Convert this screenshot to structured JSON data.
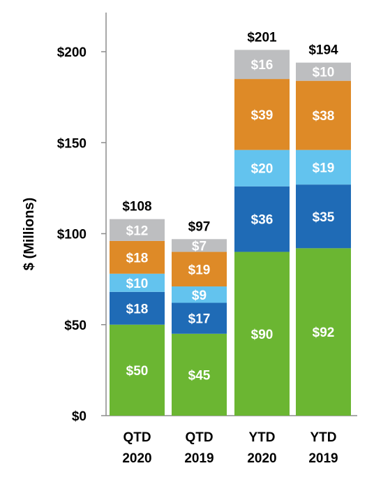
{
  "chart_data": {
    "type": "bar",
    "stacked": true,
    "categories": [
      "QTD\n2020",
      "QTD\n2019",
      "YTD\n2020",
      "YTD\n2019"
    ],
    "series": [
      {
        "values": [
          50,
          45,
          90,
          92
        ],
        "labels": [
          "$50",
          "$45",
          "$90",
          "$92"
        ],
        "color": "#6BB632"
      },
      {
        "values": [
          18,
          17,
          36,
          35
        ],
        "labels": [
          "$18",
          "$17",
          "$36",
          "$35"
        ],
        "color": "#1F6BB6"
      },
      {
        "values": [
          10,
          9,
          20,
          19
        ],
        "labels": [
          "$10",
          "$9",
          "$20",
          "$19"
        ],
        "color": "#63C3EE"
      },
      {
        "values": [
          18,
          19,
          39,
          38
        ],
        "labels": [
          "$18",
          "$19",
          "$39",
          "$38"
        ],
        "color": "#DE8A27"
      },
      {
        "values": [
          12,
          7,
          16,
          10
        ],
        "labels": [
          "$12",
          "$7",
          "$16",
          "$10"
        ],
        "color": "#BDBEC0"
      }
    ],
    "totals": [
      108,
      97,
      201,
      194
    ],
    "total_labels": [
      "$108",
      "$97",
      "$201",
      "$194"
    ],
    "ylabel": "$ (Millions)",
    "ylim": [
      0,
      220
    ],
    "yticks": [
      0,
      50,
      100,
      150,
      200
    ],
    "ytick_labels": [
      "$0",
      "$50",
      "$100",
      "$150",
      "$200"
    ],
    "grid": false,
    "legend": "none"
  }
}
